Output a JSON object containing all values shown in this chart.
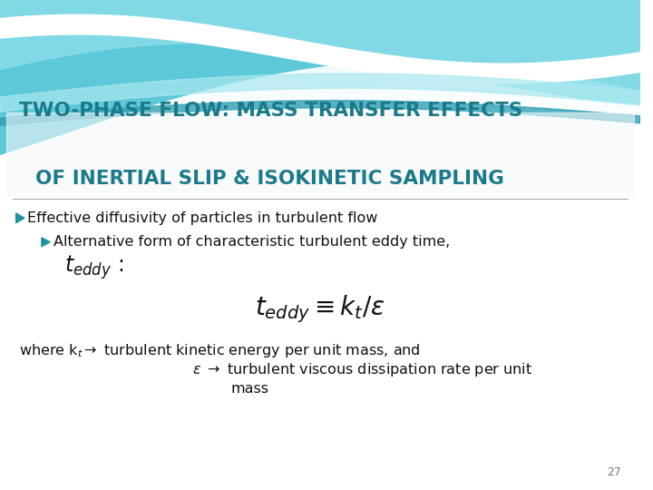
{
  "title_line1": "TWO-PHASE FLOW: MASS TRANSFER EFFECTS",
  "title_line2": "OF INERTIAL SLIP & ISOKINETIC SAMPLING",
  "title_color": "#1a7a8a",
  "bullet1": "Effective diffusivity of particles in turbulent flow",
  "bullet2": "Alternative form of characteristic turbulent eddy time,",
  "page_number": "27",
  "text_color": "#111111",
  "bullet_color": "#2090a0",
  "wave_teal_dark": "#30b0c0",
  "wave_teal_light": "#70d0e0",
  "wave_white": "#ffffff",
  "bg_bottom": "#f0f4f8"
}
